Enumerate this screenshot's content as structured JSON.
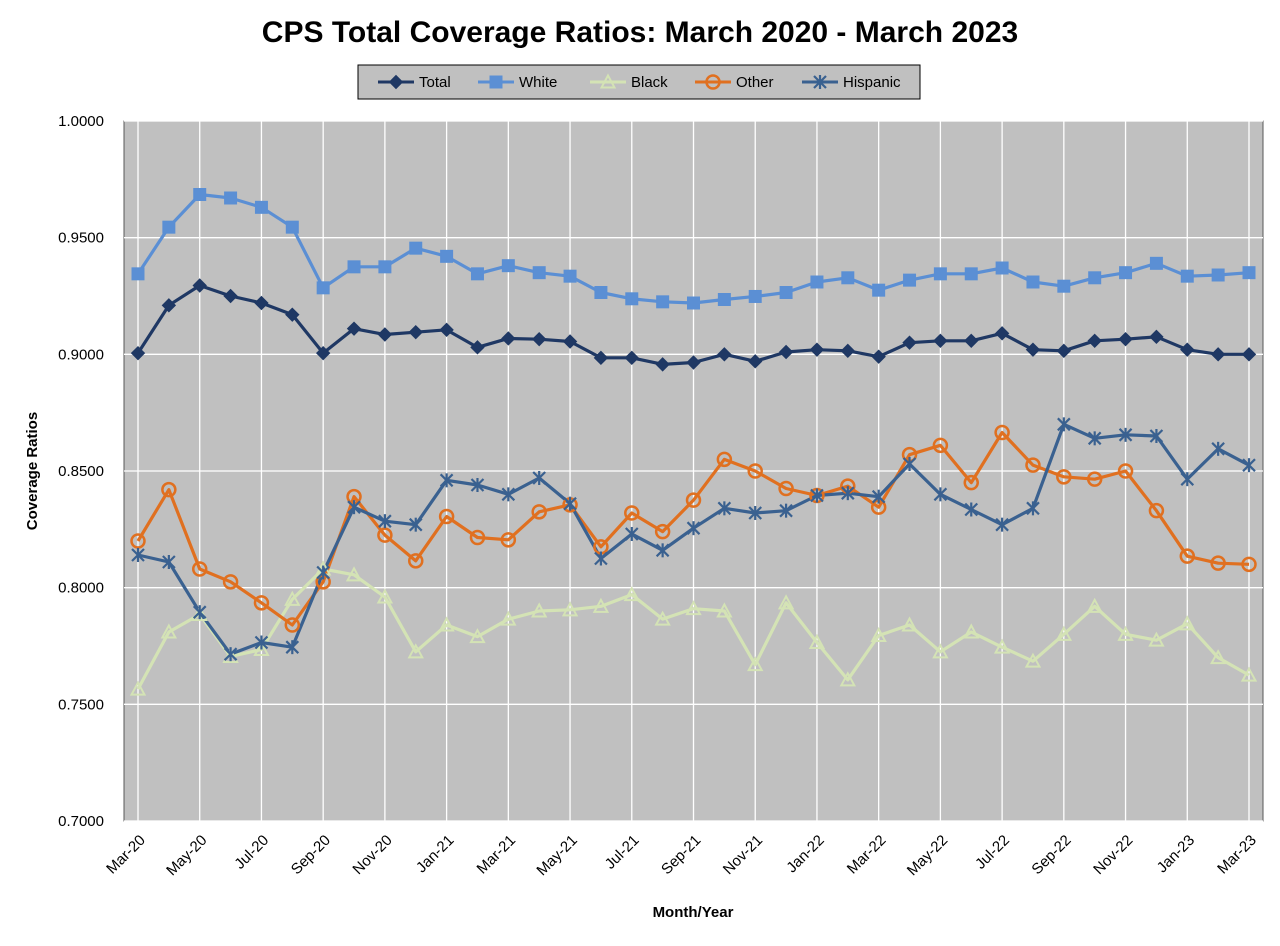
{
  "chart_data": {
    "type": "line",
    "title": "CPS Total Coverage Ratios: March 2020 - March 2023",
    "xlabel": "Month/Year",
    "ylabel": "Coverage Ratios",
    "ylim": [
      0.7,
      1.0
    ],
    "yticks": [
      "0.7000",
      "0.7500",
      "0.8000",
      "0.8500",
      "0.9000",
      "0.9500",
      "1.0000"
    ],
    "ytick_values": [
      0.7,
      0.75,
      0.8,
      0.85,
      0.9,
      0.95,
      1.0
    ],
    "grid": true,
    "legend_position": "top-center",
    "plot_background": "#c0c0c0",
    "x": [
      "Mar-20",
      "Apr-20",
      "May-20",
      "Jun-20",
      "Jul-20",
      "Aug-20",
      "Sep-20",
      "Oct-20",
      "Nov-20",
      "Dec-20",
      "Jan-21",
      "Feb-21",
      "Mar-21",
      "Apr-21",
      "May-21",
      "Jun-21",
      "Jul-21",
      "Aug-21",
      "Sep-21",
      "Oct-21",
      "Nov-21",
      "Dec-21",
      "Jan-22",
      "Feb-22",
      "Mar-22",
      "Apr-22",
      "May-22",
      "Jun-22",
      "Jul-22",
      "Aug-22",
      "Sep-22",
      "Oct-22",
      "Nov-22",
      "Dec-22",
      "Jan-23",
      "Feb-23",
      "Mar-23"
    ],
    "x_tick_labels": [
      "Mar-20",
      "May-20",
      "Jul-20",
      "Sep-20",
      "Nov-20",
      "Jan-21",
      "Mar-21",
      "May-21",
      "Jul-21",
      "Sep-21",
      "Nov-21",
      "Jan-22",
      "Mar-22",
      "May-22",
      "Jul-22",
      "Sep-22",
      "Nov-22",
      "Jan-23",
      "Mar-23"
    ],
    "series": [
      {
        "name": "Total",
        "color": "#1f3864",
        "marker": "diamond",
        "values": [
          0.9005,
          0.921,
          0.9295,
          0.925,
          0.922,
          0.917,
          0.9005,
          0.911,
          0.9085,
          0.9095,
          0.9105,
          0.903,
          0.9068,
          0.9065,
          0.9055,
          0.8985,
          0.8985,
          0.8957,
          0.8965,
          0.9,
          0.897,
          0.901,
          0.902,
          0.9015,
          0.899,
          0.905,
          0.9058,
          0.9058,
          0.909,
          0.902,
          0.9015,
          0.9058,
          0.9065,
          0.9075,
          0.902,
          0.9,
          0.9
        ]
      },
      {
        "name": "White",
        "color": "#5b8fd4",
        "marker": "square",
        "values": [
          0.9345,
          0.9545,
          0.9685,
          0.967,
          0.963,
          0.9545,
          0.9285,
          0.9375,
          0.9375,
          0.9455,
          0.942,
          0.9345,
          0.938,
          0.935,
          0.9335,
          0.9265,
          0.9238,
          0.9225,
          0.922,
          0.9235,
          0.9248,
          0.9265,
          0.931,
          0.9328,
          0.9275,
          0.9318,
          0.9345,
          0.9345,
          0.937,
          0.931,
          0.9292,
          0.9328,
          0.935,
          0.939,
          0.9335,
          0.934,
          0.935
        ]
      },
      {
        "name": "Black",
        "color": "#d4e3b5",
        "marker": "triangle",
        "values": [
          0.7565,
          0.781,
          0.7885,
          0.7705,
          0.7735,
          0.795,
          0.808,
          0.8055,
          0.796,
          0.7725,
          0.784,
          0.779,
          0.7865,
          0.79,
          0.7905,
          0.792,
          0.797,
          0.7865,
          0.791,
          0.79,
          0.767,
          0.7935,
          0.7765,
          0.7605,
          0.7795,
          0.784,
          0.7725,
          0.781,
          0.7745,
          0.7685,
          0.78,
          0.792,
          0.78,
          0.7775,
          0.7845,
          0.77,
          0.7625
        ]
      },
      {
        "name": "Other",
        "color": "#e07020",
        "marker": "circle",
        "values": [
          0.82,
          0.842,
          0.808,
          0.8025,
          0.7935,
          0.784,
          0.8025,
          0.839,
          0.8225,
          0.8115,
          0.8305,
          0.8215,
          0.8205,
          0.8325,
          0.8355,
          0.8175,
          0.832,
          0.824,
          0.8375,
          0.855,
          0.85,
          0.8425,
          0.8395,
          0.8435,
          0.8345,
          0.857,
          0.861,
          0.845,
          0.8665,
          0.8525,
          0.8475,
          0.8465,
          0.85,
          0.833,
          0.8135,
          0.8105,
          0.81
        ]
      },
      {
        "name": "Hispanic",
        "color": "#3a6190",
        "marker": "star",
        "values": [
          0.814,
          0.811,
          0.7895,
          0.7715,
          0.7765,
          0.7745,
          0.8065,
          0.8345,
          0.8285,
          0.827,
          0.846,
          0.844,
          0.84,
          0.847,
          0.836,
          0.8125,
          0.823,
          0.816,
          0.8255,
          0.834,
          0.832,
          0.833,
          0.8395,
          0.8405,
          0.839,
          0.853,
          0.84,
          0.8335,
          0.827,
          0.834,
          0.87,
          0.864,
          0.8655,
          0.865,
          0.8465,
          0.8595,
          0.8525
        ]
      }
    ]
  }
}
